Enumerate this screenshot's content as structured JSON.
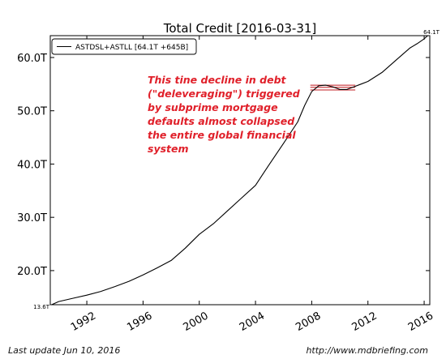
{
  "chart_data": {
    "type": "line",
    "title": "Total Credit  [2016-03-31]",
    "xlabel": "",
    "ylabel": "",
    "xlim": [
      1989.4,
      2016.4
    ],
    "ylim": [
      13.6,
      64.1
    ],
    "x_ticks": [
      1992,
      1996,
      2000,
      2004,
      2008,
      2012,
      2016
    ],
    "y_ticks": [
      20,
      30,
      40,
      50,
      60
    ],
    "y_tick_labels": [
      "20.0T",
      "30.0T",
      "40.0T",
      "50.0T",
      "60.0T"
    ],
    "y_min_label": "13.6T",
    "y_max_label": "64.1T",
    "grid": false,
    "legend_position": "top-left",
    "series": [
      {
        "name": "ASTDSL+ASTLL [64.1T +645B]",
        "color": "#000000",
        "x": [
          1989.5,
          1990,
          1991,
          1992,
          1993,
          1994,
          1995,
          1996,
          1997,
          1998,
          1999,
          2000,
          2001,
          2002,
          2003,
          2004,
          2004.5,
          2005,
          2006,
          2007,
          2007.5,
          2008,
          2008.5,
          2009,
          2009.5,
          2010,
          2010.5,
          2011,
          2011.5,
          2012,
          2013,
          2014,
          2015,
          2015.5,
          2016,
          2016.25
        ],
        "y": [
          13.6,
          14.2,
          14.8,
          15.4,
          16.1,
          17.0,
          18.0,
          19.2,
          20.5,
          21.9,
          24.2,
          26.8,
          28.8,
          31.2,
          33.6,
          36.0,
          38.0,
          40.0,
          43.9,
          47.9,
          51.0,
          53.6,
          54.7,
          54.8,
          54.5,
          54.0,
          54.0,
          54.5,
          55.0,
          55.5,
          57.2,
          59.5,
          61.8,
          62.6,
          63.5,
          64.1
        ]
      }
    ],
    "reference_lines": [
      {
        "y": 54.8,
        "x_start": 2007.9,
        "x_end": 2011.1,
        "color": "#c0191f"
      },
      {
        "y": 54.4,
        "x_start": 2007.9,
        "x_end": 2011.1,
        "color": "#c0191f"
      },
      {
        "y": 53.9,
        "x_start": 2007.9,
        "x_end": 2011.1,
        "color": "#c0191f"
      }
    ],
    "annotation": {
      "lines": [
        "This tine decline in debt",
        "(\"deleveraging\") triggered",
        "by subprime mortgage",
        "defaults almost collapsed",
        "the entire global financial",
        "system"
      ],
      "color": "#e0202a"
    }
  },
  "footer": {
    "left": "Last update Jun 10, 2016",
    "right": "http://www.mdbriefing.com"
  }
}
